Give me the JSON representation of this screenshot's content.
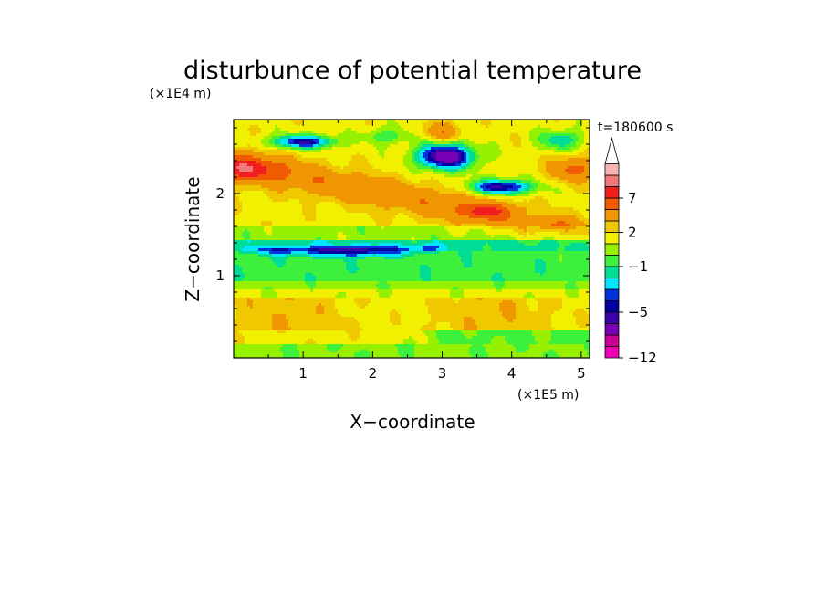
{
  "chart_data": {
    "type": "heatmap",
    "title": "disturbunce of potential temperature",
    "xlabel": "X−coordinate",
    "ylabel": "Z−coordinate",
    "x_scale_label": "(×1E5 m)",
    "y_scale_label": "(×1E4 m)",
    "time_label": "t=180600 s",
    "xlim": [
      0,
      5.12
    ],
    "ylim": [
      0,
      2.9
    ],
    "xticks": [
      "1",
      "2",
      "3",
      "4",
      "5"
    ],
    "yticks": [
      "1",
      "2"
    ],
    "colorbar": {
      "levels": [
        -12,
        -10,
        -8,
        -6,
        -5,
        -4,
        -3,
        -2,
        -1,
        0,
        1,
        2,
        3,
        5,
        7,
        9,
        11
      ],
      "tick_labels": [
        "−12",
        "−5",
        "−1",
        "2",
        "7"
      ],
      "colors": [
        "#f000b4",
        "#c80096",
        "#7800b4",
        "#3c00aa",
        "#0000a0",
        "#0032dc",
        "#00e6ff",
        "#00dc96",
        "#3cf03c",
        "#96f000",
        "#f0f000",
        "#f0c800",
        "#f09600",
        "#f05a00",
        "#f01e1e",
        "#f07878",
        "#f8b4b4"
      ],
      "extend": "max"
    },
    "field_features": [
      {
        "name": "upper-left negative band",
        "x": [
          0.7,
          1.4
        ],
        "z": [
          2.55,
          2.7
        ],
        "value": -5
      },
      {
        "name": "central negative cell",
        "x": [
          2.7,
          3.4
        ],
        "z": [
          2.3,
          2.6
        ],
        "value": -8
      },
      {
        "name": "right negative cell",
        "x": [
          3.5,
          4.2
        ],
        "z": [
          2.0,
          2.2
        ],
        "value": -5
      },
      {
        "name": "left positive band",
        "x": [
          0.0,
          1.1
        ],
        "z": [
          2.1,
          2.5
        ],
        "value": 5
      },
      {
        "name": "right positive band",
        "x": [
          4.5,
          5.1
        ],
        "z": [
          2.2,
          2.5
        ],
        "value": 5
      },
      {
        "name": "tilted positive ridge",
        "x": [
          1.6,
          4.0
        ],
        "z": [
          1.7,
          2.0
        ],
        "value": 3
      },
      {
        "name": "negative layer",
        "x": [
          1.0,
          2.3
        ],
        "z": [
          1.2,
          1.4
        ],
        "value": -5
      },
      {
        "name": "cyan layer",
        "x": [
          0.0,
          5.12
        ],
        "z": [
          0.8,
          1.3
        ],
        "value": -1
      },
      {
        "name": "lower positive layer",
        "x": [
          0.0,
          5.12
        ],
        "z": [
          0.2,
          0.7
        ],
        "value": 2
      },
      {
        "name": "near-surface green layer",
        "x": [
          2.5,
          5.12
        ],
        "z": [
          0.0,
          0.3
        ],
        "value": 0
      }
    ]
  }
}
